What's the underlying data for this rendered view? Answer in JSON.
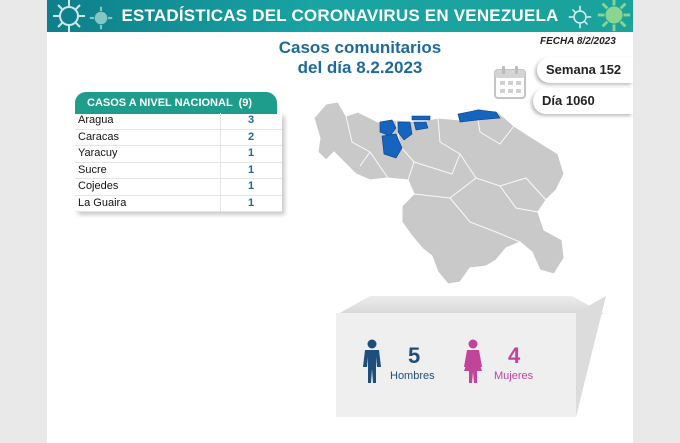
{
  "header": {
    "title": "ESTADÍSTICAS DEL CORONAVIRUS EN VENEZUELA"
  },
  "heading": {
    "line1": "Casos comunitarios",
    "line2": "del día 8.2.2023"
  },
  "fecha": "FECHA 8/2/2023",
  "semana": "Semana 152",
  "dia": "Día 1060",
  "table": {
    "title": "CASOS A NIVEL NACIONAL",
    "total": "(9)",
    "rows": [
      {
        "name": "Aragua",
        "value": "3"
      },
      {
        "name": "Caracas",
        "value": "2"
      },
      {
        "name": "Yaracuy",
        "value": "1"
      },
      {
        "name": "Sucre",
        "value": "1"
      },
      {
        "name": "Cojedes",
        "value": "1"
      },
      {
        "name": "La Guaira",
        "value": "1"
      }
    ]
  },
  "stats": {
    "men_value": "5",
    "men_label": "Hombres",
    "women_value": "4",
    "women_label": "Mujeres"
  },
  "colors": {
    "banner": "#19a3a3",
    "heading": "#1e6a9c",
    "table_header": "#1e9c8c",
    "men": "#1e4f7a",
    "women": "#c0449a",
    "map_highlight": "#1565c0",
    "map_base": "#c9c9c9"
  },
  "icons": [
    "virus-icon",
    "calendar-icon",
    "man-icon",
    "woman-icon"
  ]
}
